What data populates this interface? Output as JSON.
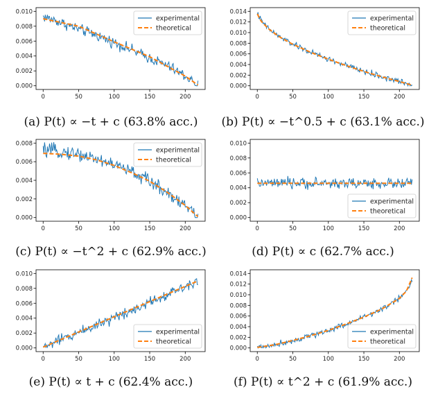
{
  "legend": {
    "experimental": "experimental",
    "theoretical": "theoretical"
  },
  "colors": {
    "experimental": "#1f77b4",
    "theoretical": "#ff7f0e"
  },
  "chart_data": [
    {
      "type": "line",
      "caption": "(a) P(t) ∝ −t + c (63.8% acc.)",
      "x_range": [
        0,
        218
      ],
      "ylim": [
        0,
        0.01
      ],
      "xticks": [
        0,
        50,
        100,
        150,
        200
      ],
      "yticks": [
        0.0,
        0.002,
        0.004,
        0.006,
        0.008,
        0.01
      ],
      "ytick_labels": [
        "0.000",
        "0.002",
        "0.004",
        "0.006",
        "0.008",
        "0.010"
      ],
      "legend_position": "top-right",
      "series": [
        {
          "name": "experimental",
          "style": "solid",
          "x": [
            0,
            25,
            50,
            75,
            100,
            125,
            150,
            175,
            200,
            218
          ],
          "y": [
            0.0093,
            0.0085,
            0.0076,
            0.0068,
            0.0058,
            0.0048,
            0.0037,
            0.0027,
            0.0013,
            0.0001
          ],
          "noise": 0.00045
        },
        {
          "name": "theoretical",
          "style": "dashed",
          "x": [
            0,
            50,
            100,
            150,
            200,
            218
          ],
          "y": [
            0.009,
            0.008,
            0.0059,
            0.0039,
            0.0013,
            0.0001
          ]
        }
      ]
    },
    {
      "type": "line",
      "caption": "(b) P(t) ∝ −t^0.5 + c (63.1% acc.)",
      "x_range": [
        0,
        218
      ],
      "ylim": [
        0,
        0.014
      ],
      "xticks": [
        0,
        50,
        100,
        150,
        200
      ],
      "yticks": [
        0.0,
        0.002,
        0.004,
        0.006,
        0.008,
        0.01,
        0.012,
        0.014
      ],
      "ytick_labels": [
        "0.000",
        "0.002",
        "0.004",
        "0.006",
        "0.008",
        "0.010",
        "0.012",
        "0.014"
      ],
      "legend_position": "top-right",
      "series": [
        {
          "name": "experimental",
          "style": "solid",
          "x": [
            0,
            5,
            15,
            30,
            50,
            75,
            100,
            125,
            150,
            175,
            200,
            218
          ],
          "y": [
            0.0137,
            0.0123,
            0.0108,
            0.0093,
            0.0078,
            0.0063,
            0.005,
            0.0038,
            0.0027,
            0.0017,
            0.0008,
            0.0001
          ],
          "noise": 0.00035
        },
        {
          "name": "theoretical",
          "style": "dashed",
          "x": [
            0,
            5,
            15,
            30,
            50,
            75,
            100,
            125,
            150,
            175,
            200,
            218
          ],
          "y": [
            0.0135,
            0.0122,
            0.0108,
            0.0093,
            0.0078,
            0.0063,
            0.005,
            0.0038,
            0.0027,
            0.0017,
            0.0008,
            0.0001
          ]
        }
      ]
    },
    {
      "type": "line",
      "caption": "(c) P(t) ∝ −t^2 + c (62.9% acc.)",
      "x_range": [
        0,
        218
      ],
      "ylim": [
        0,
        0.008
      ],
      "xticks": [
        0,
        50,
        100,
        150,
        200
      ],
      "yticks": [
        0.0,
        0.002,
        0.004,
        0.006,
        0.008
      ],
      "ytick_labels": [
        "0.000",
        "0.002",
        "0.004",
        "0.006",
        "0.008"
      ],
      "legend_position": "top-right",
      "series": [
        {
          "name": "experimental",
          "style": "solid",
          "x": [
            0,
            25,
            50,
            75,
            100,
            125,
            150,
            175,
            200,
            218
          ],
          "y": [
            0.0072,
            0.0071,
            0.0068,
            0.0063,
            0.0057,
            0.0049,
            0.0039,
            0.0027,
            0.0013,
            0.0001
          ],
          "noise": 0.00045
        },
        {
          "name": "theoretical",
          "style": "dashed",
          "x": [
            0,
            25,
            50,
            75,
            100,
            125,
            150,
            175,
            200,
            218
          ],
          "y": [
            0.0069,
            0.0068,
            0.0066,
            0.0062,
            0.0056,
            0.0048,
            0.0039,
            0.0027,
            0.0013,
            0.0001
          ]
        }
      ]
    },
    {
      "type": "line",
      "caption": "(d) P(t) ∝ c (62.7% acc.)",
      "x_range": [
        0,
        218
      ],
      "ylim": [
        0,
        0.01
      ],
      "xticks": [
        0,
        50,
        100,
        150,
        200
      ],
      "yticks": [
        0.0,
        0.002,
        0.004,
        0.006,
        0.008,
        0.01
      ],
      "ytick_labels": [
        "0.000",
        "0.002",
        "0.004",
        "0.006",
        "0.008",
        "0.010"
      ],
      "legend_position": "bottom-right",
      "series": [
        {
          "name": "experimental",
          "style": "solid",
          "x": [
            0,
            218
          ],
          "y": [
            0.0046,
            0.0046
          ],
          "noise": 0.00045
        },
        {
          "name": "theoretical",
          "style": "dashed",
          "x": [
            0,
            218
          ],
          "y": [
            0.0046,
            0.0046
          ]
        }
      ]
    },
    {
      "type": "line",
      "caption": "(e) P(t) ∝ t + c (62.4% acc.)",
      "x_range": [
        0,
        218
      ],
      "ylim": [
        0,
        0.01
      ],
      "xticks": [
        0,
        50,
        100,
        150,
        200
      ],
      "yticks": [
        0.0,
        0.002,
        0.004,
        0.006,
        0.008,
        0.01
      ],
      "ytick_labels": [
        "0.000",
        "0.002",
        "0.004",
        "0.006",
        "0.008",
        "0.010"
      ],
      "legend_position": "bottom-right",
      "series": [
        {
          "name": "experimental",
          "style": "solid",
          "x": [
            0,
            25,
            50,
            75,
            100,
            125,
            150,
            175,
            200,
            218
          ],
          "y": [
            0.0001,
            0.0011,
            0.0021,
            0.0031,
            0.0041,
            0.0051,
            0.0062,
            0.0072,
            0.0083,
            0.0092
          ],
          "noise": 0.00045
        },
        {
          "name": "theoretical",
          "style": "dashed",
          "x": [
            0,
            218
          ],
          "y": [
            0.0001,
            0.009
          ]
        }
      ]
    },
    {
      "type": "line",
      "caption": "(f) P(t) ∝ t^2 + c (61.9% acc.)",
      "x_range": [
        0,
        218
      ],
      "ylim": [
        0,
        0.014
      ],
      "xticks": [
        0,
        50,
        100,
        150,
        200
      ],
      "yticks": [
        0.0,
        0.002,
        0.004,
        0.006,
        0.008,
        0.01,
        0.012,
        0.014
      ],
      "ytick_labels": [
        "0.000",
        "0.002",
        "0.004",
        "0.006",
        "0.008",
        "0.010",
        "0.012",
        "0.014"
      ],
      "legend_position": "bottom-right",
      "series": [
        {
          "name": "experimental",
          "style": "solid",
          "x": [
            0,
            25,
            50,
            75,
            100,
            125,
            150,
            175,
            200,
            210,
            218
          ],
          "y": [
            0.0001,
            0.0006,
            0.0014,
            0.0023,
            0.0033,
            0.0045,
            0.0058,
            0.0073,
            0.0093,
            0.0108,
            0.0128
          ],
          "noise": 0.00035
        },
        {
          "name": "theoretical",
          "style": "dashed",
          "x": [
            0,
            25,
            50,
            75,
            100,
            125,
            150,
            175,
            200,
            210,
            218
          ],
          "y": [
            0.0001,
            0.0006,
            0.0014,
            0.0023,
            0.0033,
            0.0045,
            0.0058,
            0.0073,
            0.0093,
            0.0107,
            0.0132
          ]
        }
      ]
    }
  ]
}
